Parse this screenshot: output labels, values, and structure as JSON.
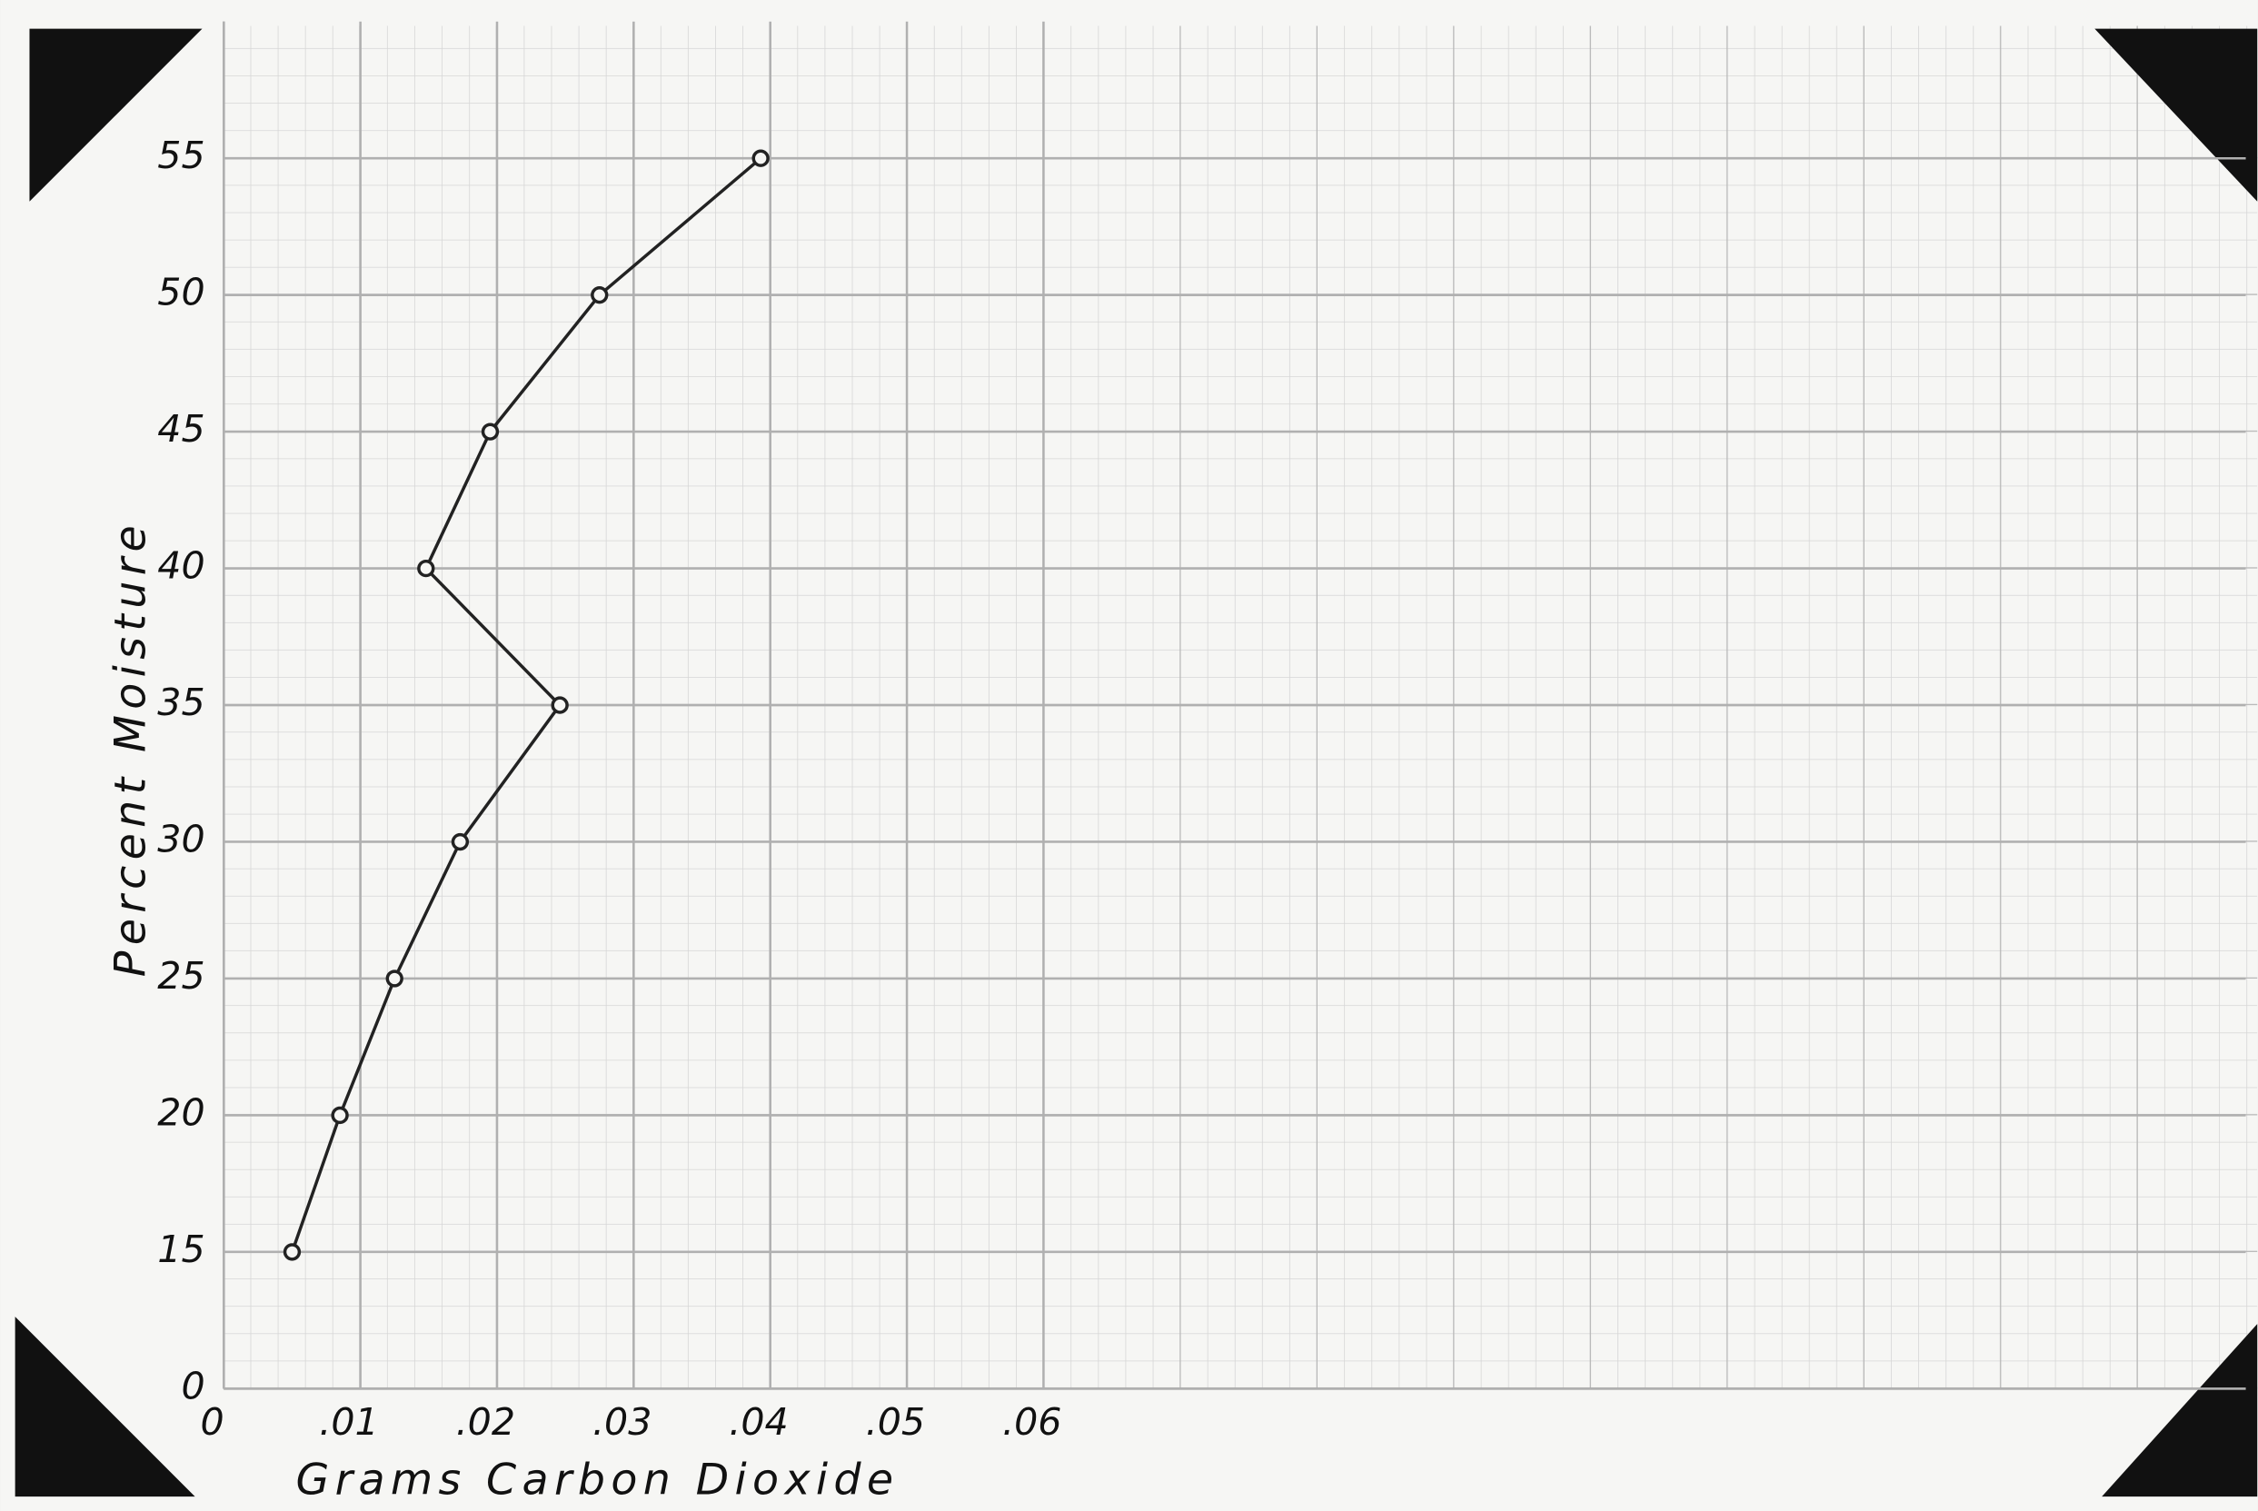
{
  "chart_data": {
    "type": "line",
    "x_label": "Grams Carbon Dioxide",
    "y_label": "Percent Moisture",
    "x": [
      0.005,
      0.0085,
      0.0125,
      0.0173,
      0.0246,
      0.0148,
      0.0195,
      0.0275,
      0.0393
    ],
    "values": [
      15,
      20,
      25,
      30,
      35,
      40,
      45,
      50,
      55
    ],
    "color": "#222222",
    "xlim": [
      0,
      0.148
    ],
    "ylim": [
      0,
      60
    ],
    "xticks": [
      0,
      {
        "value": 0.01,
        "label": ".01"
      },
      {
        "value": 0.02,
        "label": ".02"
      },
      {
        "value": 0.03,
        "label": ".03"
      },
      {
        "value": 0.04,
        "label": ".04"
      },
      {
        "value": 0.05,
        "label": ".05"
      },
      {
        "value": 0.06,
        "label": ".06"
      }
    ],
    "yticks": [
      0,
      15,
      20,
      25,
      30,
      35,
      40,
      45,
      50,
      55
    ],
    "grid": true
  }
}
